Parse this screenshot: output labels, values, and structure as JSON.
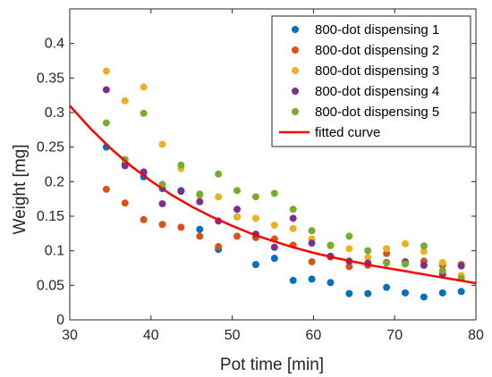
{
  "chart_data": {
    "type": "scatter",
    "xlabel": "Pot time [min]",
    "ylabel": "Weight [mg]",
    "xlim": [
      30,
      80
    ],
    "ylim": [
      0,
      0.45
    ],
    "xticks": [
      30,
      40,
      50,
      60,
      70,
      80
    ],
    "xtick_labels": [
      "30",
      "40",
      "50",
      "60",
      "70",
      "80"
    ],
    "yticks": [
      0,
      0.05,
      0.1,
      0.15,
      0.2,
      0.25,
      0.3,
      0.35,
      0.4
    ],
    "ytick_labels": [
      "0",
      "0.05",
      "0.1",
      "0.15",
      "0.2",
      "0.25",
      "0.3",
      "0.35",
      "0.4"
    ],
    "grid": false,
    "legend_position": "top-right",
    "x": [
      34.5,
      36.8,
      39.1,
      41.4,
      43.7,
      46.0,
      48.3,
      50.6,
      52.9,
      55.2,
      57.5,
      59.8,
      62.1,
      64.4,
      66.7,
      69.0,
      71.3,
      73.6,
      75.9,
      78.2
    ],
    "series": [
      {
        "name": "800-dot dispensing 1",
        "color": "#0072BD",
        "values": [
          0.25,
          0.225,
          0.207,
          0.19,
          0.187,
          0.131,
          0.102,
          0.149,
          0.08,
          0.089,
          0.057,
          0.059,
          0.054,
          0.038,
          0.038,
          0.047,
          0.039,
          0.033,
          0.039,
          0.041
        ]
      },
      {
        "name": "800-dot dispensing 2",
        "color": "#D95319",
        "values": [
          0.189,
          0.169,
          0.145,
          0.138,
          0.134,
          0.121,
          0.106,
          0.121,
          0.119,
          0.117,
          0.108,
          0.084,
          0.091,
          0.077,
          0.079,
          0.096,
          0.081,
          0.085,
          0.079,
          0.08
        ]
      },
      {
        "name": "800-dot dispensing 3",
        "color": "#EDB120",
        "values": [
          0.36,
          0.317,
          0.337,
          0.254,
          0.219,
          0.18,
          0.178,
          0.149,
          0.147,
          0.137,
          0.132,
          0.117,
          0.107,
          0.103,
          0.09,
          0.103,
          0.11,
          0.099,
          0.083,
          0.064
        ]
      },
      {
        "name": "800-dot dispensing 4",
        "color": "#7E2F8E",
        "values": [
          0.333,
          0.223,
          0.214,
          0.168,
          0.186,
          0.171,
          0.143,
          0.16,
          0.124,
          0.105,
          0.147,
          0.111,
          0.092,
          0.085,
          0.082,
          0.083,
          0.084,
          0.079,
          0.066,
          0.078
        ]
      },
      {
        "name": "800-dot dispensing 5",
        "color": "#77AC30",
        "values": [
          0.285,
          0.232,
          0.299,
          0.196,
          0.224,
          0.182,
          0.211,
          0.187,
          0.178,
          0.183,
          0.16,
          0.129,
          0.108,
          0.121,
          0.1,
          0.082,
          0.081,
          0.107,
          0.071,
          0.06
        ]
      }
    ],
    "fitted_curve": {
      "name": "fitted curve",
      "color": "#FF0000",
      "x": [
        30,
        32.5,
        35,
        37.5,
        40,
        42.5,
        45,
        47.5,
        50,
        52.5,
        55,
        57.5,
        60,
        62.5,
        65,
        67.5,
        70,
        72.5,
        75,
        77.5,
        80
      ],
      "y": [
        0.31,
        0.2775,
        0.2485,
        0.223,
        0.201,
        0.181,
        0.164,
        0.149,
        0.136,
        0.124,
        0.114,
        0.105,
        0.097,
        0.09,
        0.084,
        0.078,
        0.073,
        0.068,
        0.063,
        0.058,
        0.053
      ]
    }
  }
}
